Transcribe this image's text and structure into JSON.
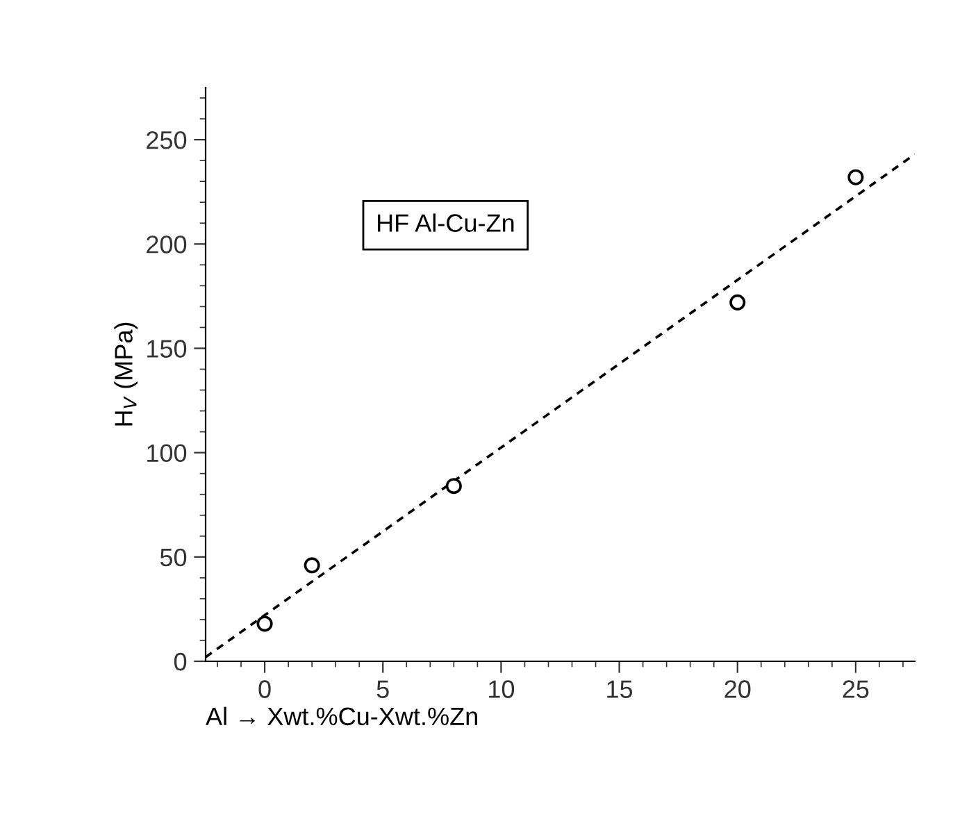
{
  "chart_data": {
    "type": "scatter",
    "xlabel": "Al → Xwt.%Cu-Xwt.%Zn",
    "ylabel": "H$_{V}$ (MPa)",
    "annotations": [
      "HF Al-Cu-Zn"
    ],
    "x": [
      0,
      2,
      8,
      20,
      25
    ],
    "series": [
      {
        "color": "#000000",
        "marker": "circle",
        "values": [
          18,
          46,
          84,
          172,
          232
        ]
      },
      {
        "type": "line",
        "color": "#000000",
        "line_style": "dashed",
        "marker": "none",
        "x": [
          -2.5,
          27.5
        ],
        "values": [
          2,
          243
        ]
      }
    ],
    "xlim": [
      -2.5,
      27.5
    ],
    "xticks": [
      0,
      5,
      10,
      15,
      20,
      25
    ],
    "ylim": [
      0,
      275
    ],
    "yticks": [
      0,
      50,
      100,
      150,
      200,
      250
    ],
    "grid": false,
    "legend": false
  }
}
